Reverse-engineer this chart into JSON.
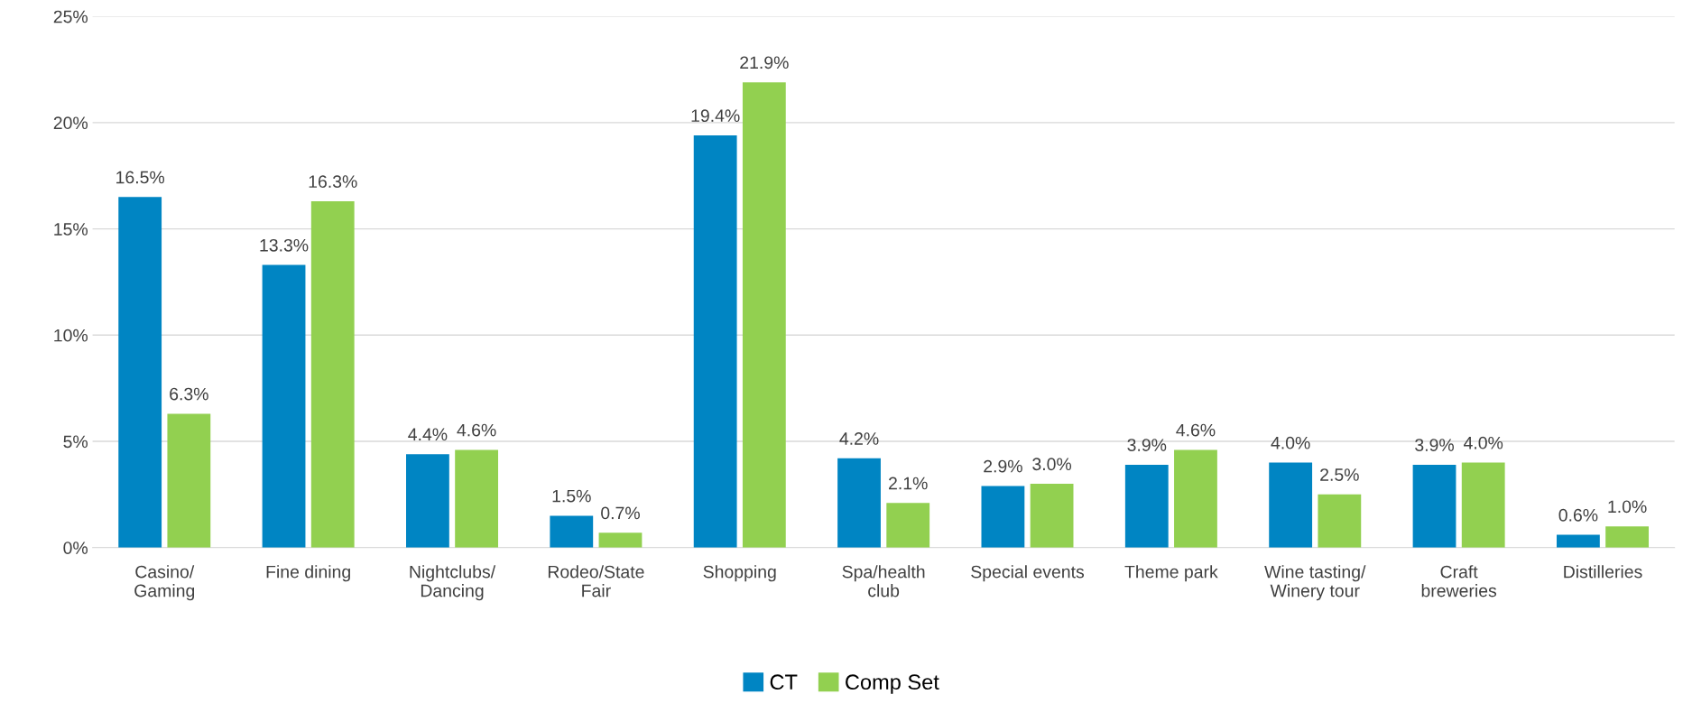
{
  "chart_data": {
    "type": "bar",
    "categories": [
      "Casino/\nGaming",
      "Fine dining",
      "Nightclubs/\nDancing",
      "Rodeo/State\nFair",
      "Shopping",
      "Spa/health\nclub",
      "Special events",
      "Theme park",
      "Wine tasting/\nWinery tour",
      "Craft\nbreweries",
      "Distilleries"
    ],
    "series": [
      {
        "name": "CT",
        "color": "#0085c3",
        "values": [
          16.5,
          13.3,
          4.4,
          1.5,
          19.4,
          4.2,
          2.9,
          3.9,
          4.0,
          3.9,
          0.6
        ],
        "value_labels": [
          "16.5%",
          "13.3%",
          "4.4%",
          "1.5%",
          "19.4%",
          "4.2%",
          "2.9%",
          "3.9%",
          "4.0%",
          "3.9%",
          "0.6%"
        ]
      },
      {
        "name": "Comp Set",
        "color": "#92d050",
        "values": [
          6.3,
          16.3,
          4.6,
          0.7,
          21.9,
          2.1,
          3.0,
          4.6,
          2.5,
          4.0,
          1.0
        ],
        "value_labels": [
          "6.3%",
          "16.3%",
          "4.6%",
          "0.7%",
          "21.9%",
          "2.1%",
          "3.0%",
          "4.6%",
          "2.5%",
          "4.0%",
          "1.0%"
        ]
      }
    ],
    "ylim": [
      0,
      25
    ],
    "yticks": [
      {
        "value": 0,
        "label": "0%"
      },
      {
        "value": 5,
        "label": "5%"
      },
      {
        "value": 10,
        "label": "10%"
      },
      {
        "value": 15,
        "label": "15%"
      },
      {
        "value": 20,
        "label": "20%"
      },
      {
        "value": 25,
        "label": "25%"
      }
    ],
    "grid": "y",
    "legend": "bottom"
  }
}
